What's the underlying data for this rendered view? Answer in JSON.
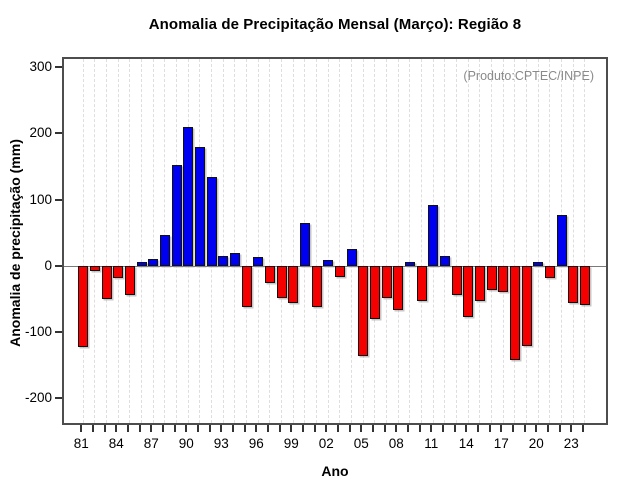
{
  "title": "Anomalia de Precipitação Mensal (Março): Região 8",
  "chart_data": {
    "type": "bar",
    "title": "Anomalia de Precipitação Mensal (Março): Região 8",
    "xlabel": "Ano",
    "ylabel": "Anomalia de precipitação (mm)",
    "annotation": "(Produto:CPTEC/INPE)",
    "x": [
      1981,
      1982,
      1983,
      1984,
      1985,
      1986,
      1987,
      1988,
      1989,
      1990,
      1991,
      1992,
      1993,
      1994,
      1995,
      1996,
      1997,
      1998,
      1999,
      2000,
      2001,
      2002,
      2003,
      2004,
      2005,
      2006,
      2007,
      2008,
      2009,
      2010,
      2011,
      2012,
      2013,
      2014,
      2015,
      2016,
      2017,
      2018,
      2019,
      2020,
      2021,
      2022,
      2023,
      2024
    ],
    "values": [
      -123,
      -8,
      -50,
      -18,
      -45,
      5,
      10,
      47,
      152,
      210,
      179,
      134,
      15,
      19,
      -62,
      13,
      -26,
      -49,
      -56,
      65,
      -63,
      9,
      -17,
      25,
      -137,
      -81,
      -49,
      -67,
      5,
      -54,
      92,
      15,
      -44,
      -78,
      -53,
      -37,
      -40,
      -142,
      -122,
      6,
      -18,
      76,
      -56,
      -59
    ],
    "yticks": [
      300,
      200,
      100,
      0,
      -100,
      -200
    ],
    "ylim": [
      -240,
      315
    ],
    "xtick_years": [
      1981,
      1984,
      1987,
      1990,
      1993,
      1996,
      1999,
      2002,
      2005,
      2008,
      2011,
      2014,
      2017,
      2020,
      2023
    ],
    "xtick_labels": [
      "81",
      "84",
      "87",
      "90",
      "93",
      "96",
      "99",
      "02",
      "05",
      "08",
      "11",
      "14",
      "17",
      "20",
      "23"
    ],
    "positive_color": "#0000f0",
    "negative_color": "#f50000",
    "grid": "vertical-dashed",
    "legend": "none"
  }
}
